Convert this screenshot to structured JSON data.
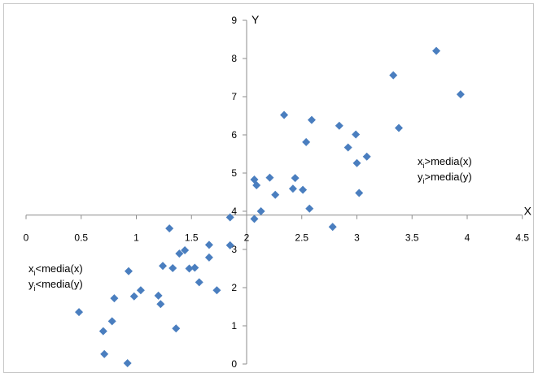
{
  "chart_data": {
    "type": "scatter",
    "title": "",
    "xlabel": "X",
    "ylabel": "Y",
    "xlim": [
      0,
      4.5
    ],
    "ylim": [
      0,
      9
    ],
    "x_ticks": [
      "0",
      "0.5",
      "1",
      "1.5",
      "2",
      "2.5",
      "3",
      "3.5",
      "4",
      "4.5"
    ],
    "y_ticks": [
      "0",
      "1",
      "2",
      "3",
      "4",
      "5",
      "6",
      "7",
      "8",
      "9"
    ],
    "x_tick_values": [
      0,
      0.5,
      1,
      1.5,
      2,
      2.5,
      3,
      3.5,
      4,
      4.5
    ],
    "y_tick_values": [
      0,
      1,
      2,
      3,
      4,
      5,
      6,
      7,
      8,
      9
    ],
    "axis_cross": {
      "x": 2.0,
      "y": 3.9
    },
    "grid": false,
    "legend": "none",
    "marker": "diamond",
    "marker_color": "#4a7ebf",
    "annotations": {
      "upper_right": [
        "x",
        "i",
        ">media(x)",
        "y",
        "i",
        ">media(y)"
      ],
      "lower_left": [
        "x",
        "i",
        "<media(x)",
        "y",
        "i",
        "<media(y)"
      ]
    },
    "points": [
      [
        0.48,
        1.36
      ],
      [
        0.7,
        0.86
      ],
      [
        0.71,
        0.26
      ],
      [
        0.78,
        1.12
      ],
      [
        0.8,
        1.72
      ],
      [
        0.92,
        0.02
      ],
      [
        0.93,
        2.43
      ],
      [
        0.98,
        1.77
      ],
      [
        1.04,
        1.93
      ],
      [
        1.2,
        1.79
      ],
      [
        1.22,
        1.57
      ],
      [
        1.24,
        2.57
      ],
      [
        1.3,
        3.55
      ],
      [
        1.33,
        2.51
      ],
      [
        1.36,
        0.93
      ],
      [
        1.39,
        2.89
      ],
      [
        1.44,
        2.98
      ],
      [
        1.48,
        2.5
      ],
      [
        1.53,
        2.52
      ],
      [
        1.57,
        2.14
      ],
      [
        1.66,
        2.79
      ],
      [
        1.66,
        3.12
      ],
      [
        1.73,
        1.93
      ],
      [
        1.85,
        3.84
      ],
      [
        1.85,
        3.11
      ],
      [
        2.07,
        4.83
      ],
      [
        2.07,
        3.8
      ],
      [
        2.09,
        4.68
      ],
      [
        2.13,
        4.0
      ],
      [
        2.21,
        4.88
      ],
      [
        2.26,
        4.43
      ],
      [
        2.34,
        6.52
      ],
      [
        2.42,
        4.59
      ],
      [
        2.44,
        4.87
      ],
      [
        2.51,
        4.56
      ],
      [
        2.54,
        5.81
      ],
      [
        2.57,
        4.07
      ],
      [
        2.59,
        6.39
      ],
      [
        2.78,
        3.59
      ],
      [
        2.84,
        6.24
      ],
      [
        2.92,
        5.67
      ],
      [
        2.99,
        6.01
      ],
      [
        3.0,
        5.26
      ],
      [
        3.02,
        4.48
      ],
      [
        3.09,
        5.43
      ],
      [
        3.33,
        7.56
      ],
      [
        3.38,
        6.18
      ],
      [
        3.72,
        8.2
      ],
      [
        3.94,
        7.06
      ]
    ]
  }
}
